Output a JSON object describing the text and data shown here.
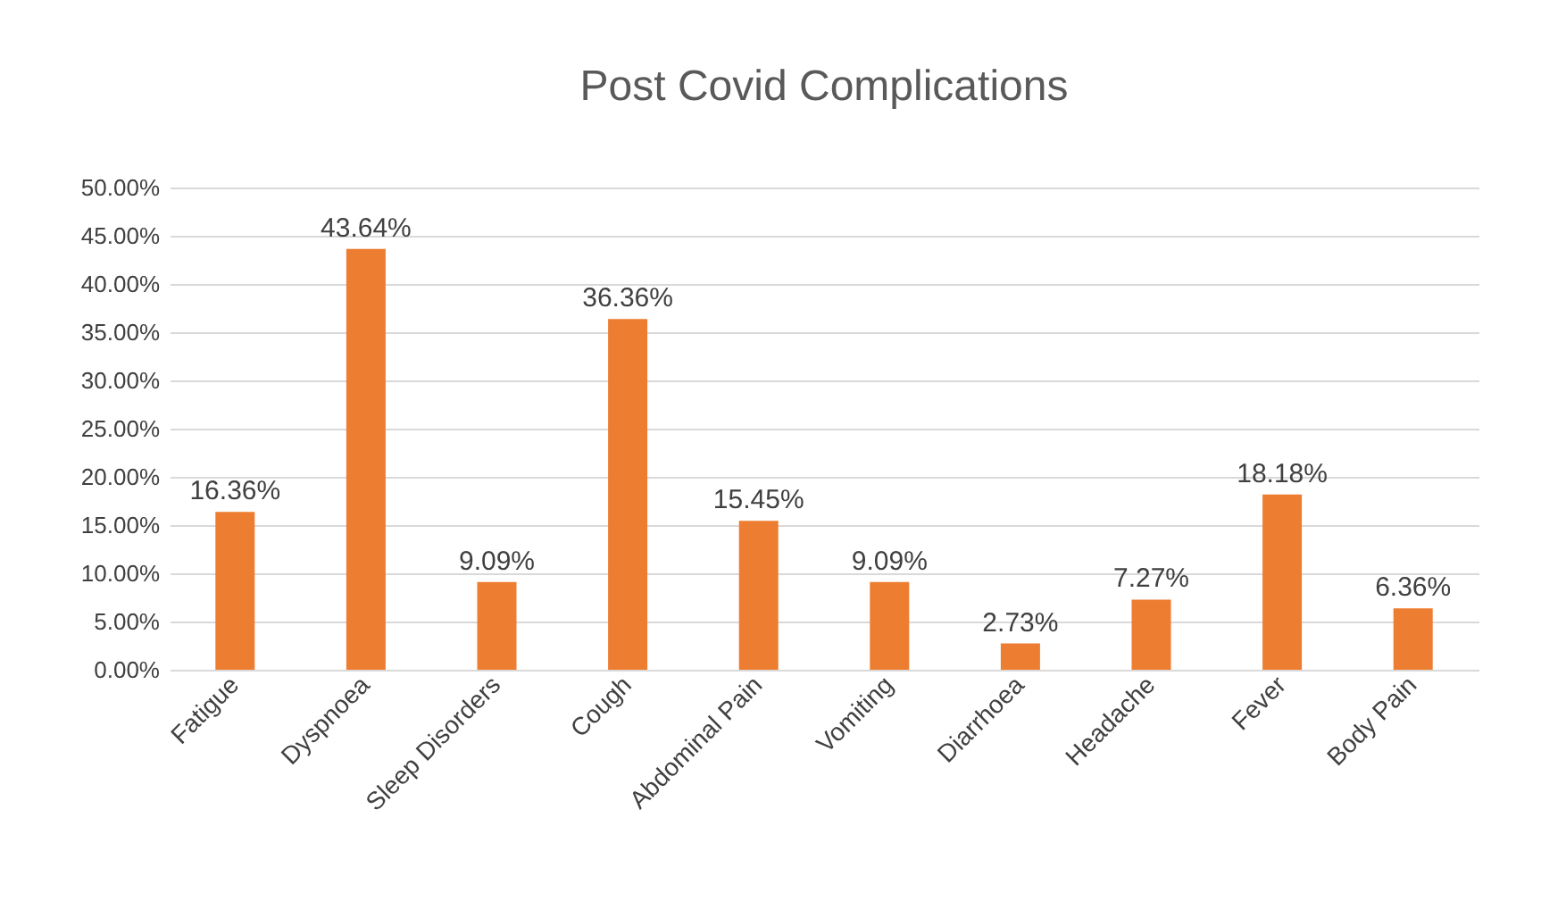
{
  "chart_data": {
    "type": "bar",
    "title": "Post Covid Complications",
    "categories": [
      "Fatigue",
      "Dyspnoea",
      "Sleep Disorders",
      "Cough",
      "Abdominal Pain",
      "Vomiting",
      "Diarrhoea",
      "Headache",
      "Fever",
      "Body Pain"
    ],
    "values": [
      16.36,
      43.64,
      9.09,
      36.36,
      15.45,
      9.09,
      2.73,
      7.27,
      18.18,
      6.36
    ],
    "value_labels": [
      "16.36%",
      "43.64%",
      "9.09%",
      "36.36%",
      "15.45%",
      "9.09%",
      "2.73%",
      "7.27%",
      "18.18%",
      "6.36%"
    ],
    "color": "#ed7d31",
    "ylim": [
      0,
      50
    ],
    "yticks": [
      {
        "value": 0,
        "label": "0.00%"
      },
      {
        "value": 5,
        "label": "5.00%"
      },
      {
        "value": 10,
        "label": "10.00%"
      },
      {
        "value": 15,
        "label": "15.00%"
      },
      {
        "value": 20,
        "label": "20.00%"
      },
      {
        "value": 25,
        "label": "25.00%"
      },
      {
        "value": 30,
        "label": "30.00%"
      },
      {
        "value": 35,
        "label": "35.00%"
      },
      {
        "value": 40,
        "label": "40.00%"
      },
      {
        "value": 45,
        "label": "45.00%"
      },
      {
        "value": 50,
        "label": "50.00%"
      }
    ],
    "grid": "y"
  }
}
